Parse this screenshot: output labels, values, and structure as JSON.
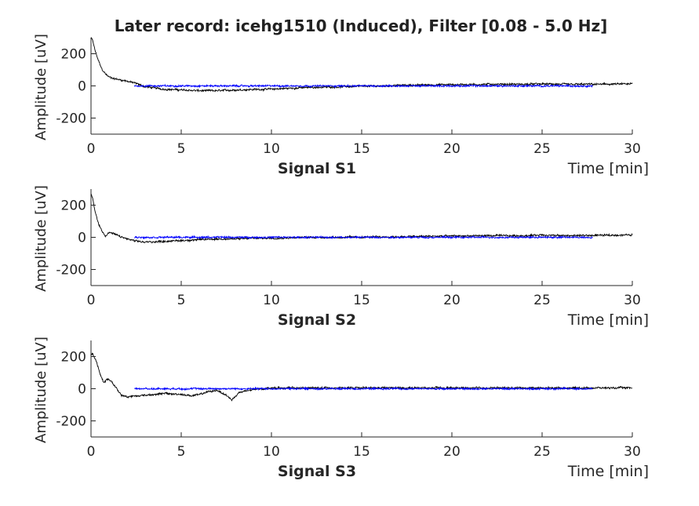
{
  "chart_data": {
    "title": "Later record: icehg1510 (Induced), Filter [0.08 - 5.0 Hz]",
    "type": "line",
    "x_unit_label": "Time [min]",
    "y_label": "Amplitude [uV]",
    "xlim": [
      0,
      30
    ],
    "ylim": [
      -300,
      300
    ],
    "x_ticks": [
      0,
      5,
      10,
      15,
      20,
      25,
      30
    ],
    "y_ticks": [
      200,
      0,
      -200
    ],
    "colors": {
      "raw": "#000000",
      "filtered": "#0000ff",
      "axis": "#262626"
    },
    "panels": [
      {
        "subtitle": "Signal S1",
        "series": [
          {
            "color": "#000000",
            "noise": 7,
            "x": [
              0,
              0.1,
              0.2,
              0.4,
              0.6,
              0.8,
              1.0,
              1.3,
              1.6,
              2.0,
              2.5,
              3,
              4,
              5,
              6,
              7,
              8,
              9,
              10,
              11,
              12,
              14,
              16,
              18,
              20,
              22,
              24,
              25,
              26,
              28,
              30
            ],
            "y": [
              300,
              280,
              230,
              160,
              105,
              75,
              55,
              45,
              38,
              30,
              15,
              -5,
              -20,
              -25,
              -30,
              -30,
              -25,
              -22,
              -20,
              -15,
              -10,
              -5,
              0,
              5,
              8,
              10,
              10,
              12,
              10,
              10,
              12
            ]
          },
          {
            "color": "#0000ff",
            "noise": 6,
            "x": [
              2.4,
              5,
              10,
              15,
              20,
              25,
              27.8
            ],
            "y": [
              0,
              0,
              0,
              0,
              0,
              0,
              0
            ]
          }
        ]
      },
      {
        "subtitle": "Signal S2",
        "series": [
          {
            "color": "#000000",
            "noise": 7,
            "x": [
              0,
              0.1,
              0.2,
              0.4,
              0.6,
              0.8,
              1.0,
              1.3,
              1.6,
              2.0,
              2.5,
              3,
              4,
              5,
              6,
              7,
              8,
              9,
              10,
              12,
              14,
              16,
              18,
              20,
              22,
              24,
              25,
              26,
              28,
              30
            ],
            "y": [
              270,
              240,
              170,
              90,
              40,
              10,
              30,
              20,
              5,
              -10,
              -25,
              -30,
              -25,
              -20,
              -15,
              -10,
              -10,
              -5,
              -5,
              0,
              0,
              2,
              5,
              8,
              10,
              10,
              15,
              10,
              12,
              15
            ]
          },
          {
            "color": "#0000ff",
            "noise": 6,
            "x": [
              2.4,
              5,
              10,
              15,
              20,
              25,
              27.8
            ],
            "y": [
              0,
              0,
              0,
              0,
              0,
              0,
              0
            ]
          }
        ]
      },
      {
        "subtitle": "Signal S3",
        "series": [
          {
            "color": "#000000",
            "noise": 7,
            "x": [
              0,
              0.1,
              0.3,
              0.5,
              0.7,
              0.9,
              1.1,
              1.4,
              1.7,
              2.0,
              2.5,
              3,
              4,
              5,
              5.6,
              6,
              6.5,
              7,
              7.5,
              7.8,
              8.2,
              9,
              10,
              12,
              14,
              16,
              18,
              20,
              22,
              24,
              26,
              28,
              30
            ],
            "y": [
              210,
              215,
              170,
              90,
              40,
              60,
              50,
              5,
              -40,
              -50,
              -45,
              -40,
              -30,
              -35,
              -45,
              -35,
              -20,
              -10,
              -40,
              -70,
              -25,
              -5,
              5,
              5,
              5,
              5,
              5,
              5,
              5,
              5,
              5,
              5,
              5
            ]
          },
          {
            "color": "#0000ff",
            "noise": 6,
            "x": [
              2.4,
              5,
              10,
              15,
              20,
              25,
              27.8
            ],
            "y": [
              0,
              0,
              0,
              0,
              0,
              0,
              0
            ]
          }
        ]
      }
    ]
  }
}
